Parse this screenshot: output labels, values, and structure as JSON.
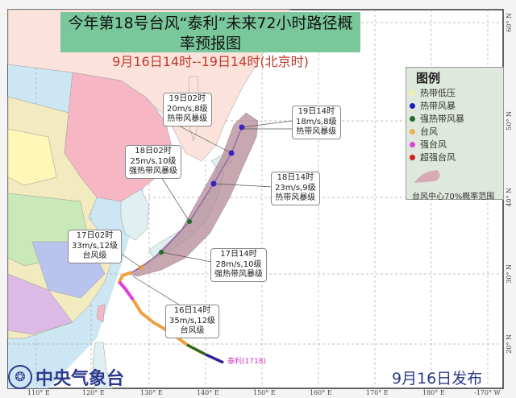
{
  "title": {
    "main": "今年第18号台风“泰利”未来72小时路径概率预报图",
    "period": "9月16日14时--19日14时(北京时)"
  },
  "legend": {
    "heading": "图例",
    "items": [
      {
        "label": "热带低压",
        "color": "#f2f0a8"
      },
      {
        "label": "热带风暴",
        "color": "#1c1cb8"
      },
      {
        "label": "强热带风暴",
        "color": "#1f6b2a"
      },
      {
        "label": "台风",
        "color": "#f0b050"
      },
      {
        "label": "强台风",
        "color": "#e040e0"
      },
      {
        "label": "超强台风",
        "color": "#d02020"
      }
    ],
    "cone_label": "台风中心70%概率范围",
    "cone_color": "#b48a96"
  },
  "callouts": [
    {
      "time": "16日14时",
      "wind": "35m/s,12级",
      "grade": "台风级"
    },
    {
      "time": "17日02时",
      "wind": "33m/s,12级",
      "grade": "台风级"
    },
    {
      "time": "17日14时",
      "wind": "28m/s,10级",
      "grade": "强热带风暴级"
    },
    {
      "time": "18日02时",
      "wind": "25m/s,10级",
      "grade": "强热带风暴级"
    },
    {
      "time": "18日14时",
      "wind": "23m/s,9级",
      "grade": "热带风暴级"
    },
    {
      "time": "19日02时",
      "wind": "20m/s,8级",
      "grade": "热带风暴级"
    },
    {
      "time": "19日14时",
      "wind": "18m/s,8级",
      "grade": "热带风暴级"
    }
  ],
  "storm_label": "泰利(1718)",
  "longitudes": [
    "110° E",
    "120° E",
    "130° E",
    "140° E",
    "150° E",
    "160° E",
    "170° E",
    "180° E",
    "-170° W"
  ],
  "latitudes": [
    "60° N",
    "50° N",
    "40° N",
    "30° N",
    "20° N"
  ],
  "agency": "中央气象台",
  "issued": "9月16日发布"
}
